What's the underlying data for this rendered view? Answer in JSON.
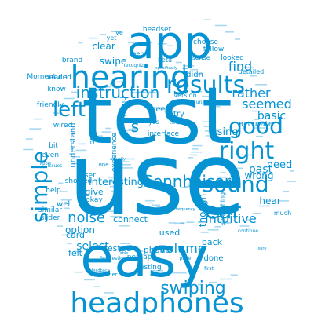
{
  "word_cloud": {
    "color": "#0593d3",
    "words": [
      {
        "text": "use",
        "weight": 1.0
      },
      {
        "text": "test",
        "weight": 0.96
      },
      {
        "text": "easy",
        "weight": 0.68
      },
      {
        "text": "app",
        "weight": 0.54
      },
      {
        "text": "hearing",
        "weight": 0.45
      },
      {
        "text": "headphones",
        "weight": 0.44
      },
      {
        "text": "results",
        "weight": 0.32
      },
      {
        "text": "right",
        "weight": 0.3
      },
      {
        "text": "sound",
        "weight": 0.28
      },
      {
        "text": "good",
        "weight": 0.28
      },
      {
        "text": "ear",
        "weight": 0.27
      },
      {
        "text": "simple",
        "weight": 0.27
      },
      {
        "text": "left",
        "weight": 0.26
      },
      {
        "text": "swiping",
        "weight": 0.22
      },
      {
        "text": "instruction",
        "weight": 0.21
      },
      {
        "text": "Sennheiser",
        "weight": 0.2
      },
      {
        "text": "noise",
        "weight": 0.19
      },
      {
        "text": "volume",
        "weight": 0.18
      },
      {
        "text": "s",
        "weight": 0.2
      },
      {
        "text": "t",
        "weight": 0.2
      },
      {
        "text": "seemed",
        "weight": 0.17
      },
      {
        "text": "find",
        "weight": 0.17
      },
      {
        "text": "intuitive",
        "weight": 0.16
      },
      {
        "text": "rather",
        "weight": 0.16
      },
      {
        "text": "select",
        "weight": 0.15
      },
      {
        "text": "basic",
        "weight": 0.15
      },
      {
        "text": "past",
        "weight": 0.15
      },
      {
        "text": "need",
        "weight": 0.14
      },
      {
        "text": "swipe",
        "weight": 0.13
      },
      {
        "text": "clear",
        "weight": 0.13
      },
      {
        "text": "option",
        "weight": 0.13
      },
      {
        "text": "interesting",
        "weight": 0.13
      },
      {
        "text": "using",
        "weight": 0.13
      },
      {
        "text": "though",
        "weight": 0.12
      },
      {
        "text": "wrong",
        "weight": 0.12
      },
      {
        "text": "hear",
        "weight": 0.12
      },
      {
        "text": "phone",
        "weight": 0.12
      },
      {
        "text": "tested",
        "weight": 0.12
      },
      {
        "text": "give",
        "weight": 0.12
      },
      {
        "text": "felt",
        "weight": 0.12
      },
      {
        "text": "done",
        "weight": 0.11
      },
      {
        "text": "back",
        "weight": 0.11
      },
      {
        "text": "well",
        "weight": 0.11
      },
      {
        "text": "card",
        "weight": 0.11
      },
      {
        "text": "try",
        "weight": 0.11
      },
      {
        "text": "see",
        "weight": 0.11
      },
      {
        "text": "connect",
        "weight": 0.11
      },
      {
        "text": "used",
        "weight": 0.11
      },
      {
        "text": "accurate",
        "weight": 0.1
      },
      {
        "text": "didn",
        "weight": 0.1
      },
      {
        "text": "understand",
        "weight": 0.1
      },
      {
        "text": "Momentum",
        "weight": 0.09
      },
      {
        "text": "friendly",
        "weight": 0.09
      },
      {
        "text": "wired",
        "weight": 0.09
      },
      {
        "text": "brand",
        "weight": 0.09
      },
      {
        "text": "know",
        "weight": 0.09
      },
      {
        "text": "needed",
        "weight": 0.09
      },
      {
        "text": "bit",
        "weight": 0.09
      },
      {
        "text": "even",
        "weight": 0.09
      },
      {
        "text": "help",
        "weight": 0.09
      },
      {
        "text": "similar",
        "weight": 0.09
      },
      {
        "text": "slider",
        "weight": 0.09
      },
      {
        "text": "user",
        "weight": 0.09
      },
      {
        "text": "okay",
        "weight": 0.09
      },
      {
        "text": "showed",
        "weight": 0.09
      },
      {
        "text": "perhaps",
        "weight": 0.09
      },
      {
        "text": "testing",
        "weight": 0.08
      },
      {
        "text": "interface",
        "weight": 0.09
      },
      {
        "text": "found",
        "weight": 0.09
      },
      {
        "text": "profiles",
        "weight": 0.09
      },
      {
        "text": "experience",
        "weight": 0.08
      },
      {
        "text": "headset",
        "weight": 0.08
      },
      {
        "text": "choose",
        "weight": 0.08
      },
      {
        "text": "follow",
        "weight": 0.08
      },
      {
        "text": "looked",
        "weight": 0.08
      },
      {
        "text": "detailed",
        "weight": 0.07
      },
      {
        "text": "beta",
        "weight": 0.08
      },
      {
        "text": "sense",
        "weight": 0.08
      },
      {
        "text": "seen",
        "weight": 0.08
      },
      {
        "text": "version",
        "weight": 0.07
      },
      {
        "text": "yes",
        "weight": 0.08
      },
      {
        "text": "yet",
        "weight": 0.08
      },
      {
        "text": "ve",
        "weight": 0.08
      },
      {
        "text": "much",
        "weight": 0.08
      },
      {
        "text": "something",
        "weight": 0.07
      },
      {
        "text": "one",
        "weight": 0.06
      },
      {
        "text": "another",
        "weight": 0.06
      },
      {
        "text": "unable",
        "weight": 0.05
      },
      {
        "text": "recognize",
        "weight": 0.05
      },
      {
        "text": "issues",
        "weight": 0.05
      },
      {
        "text": "Suggestion",
        "weight": 0.04
      },
      {
        "text": "continue",
        "weight": 0.04
      },
      {
        "text": "completely",
        "weight": 0.04
      },
      {
        "text": "page",
        "weight": 0.04
      },
      {
        "text": "first",
        "weight": 0.04
      },
      {
        "text": "Apple",
        "weight": 0.03
      },
      {
        "text": "specifically",
        "weight": 0.03
      },
      {
        "text": "frequency",
        "weight": 0.03
      },
      {
        "text": "feedback",
        "weight": 0.03
      },
      {
        "text": "actually",
        "weight": 0.03
      },
      {
        "text": "could",
        "weight": 0.03
      },
      {
        "text": "able",
        "weight": 0.03
      },
      {
        "text": "sure",
        "weight": 0.03
      }
    ]
  }
}
